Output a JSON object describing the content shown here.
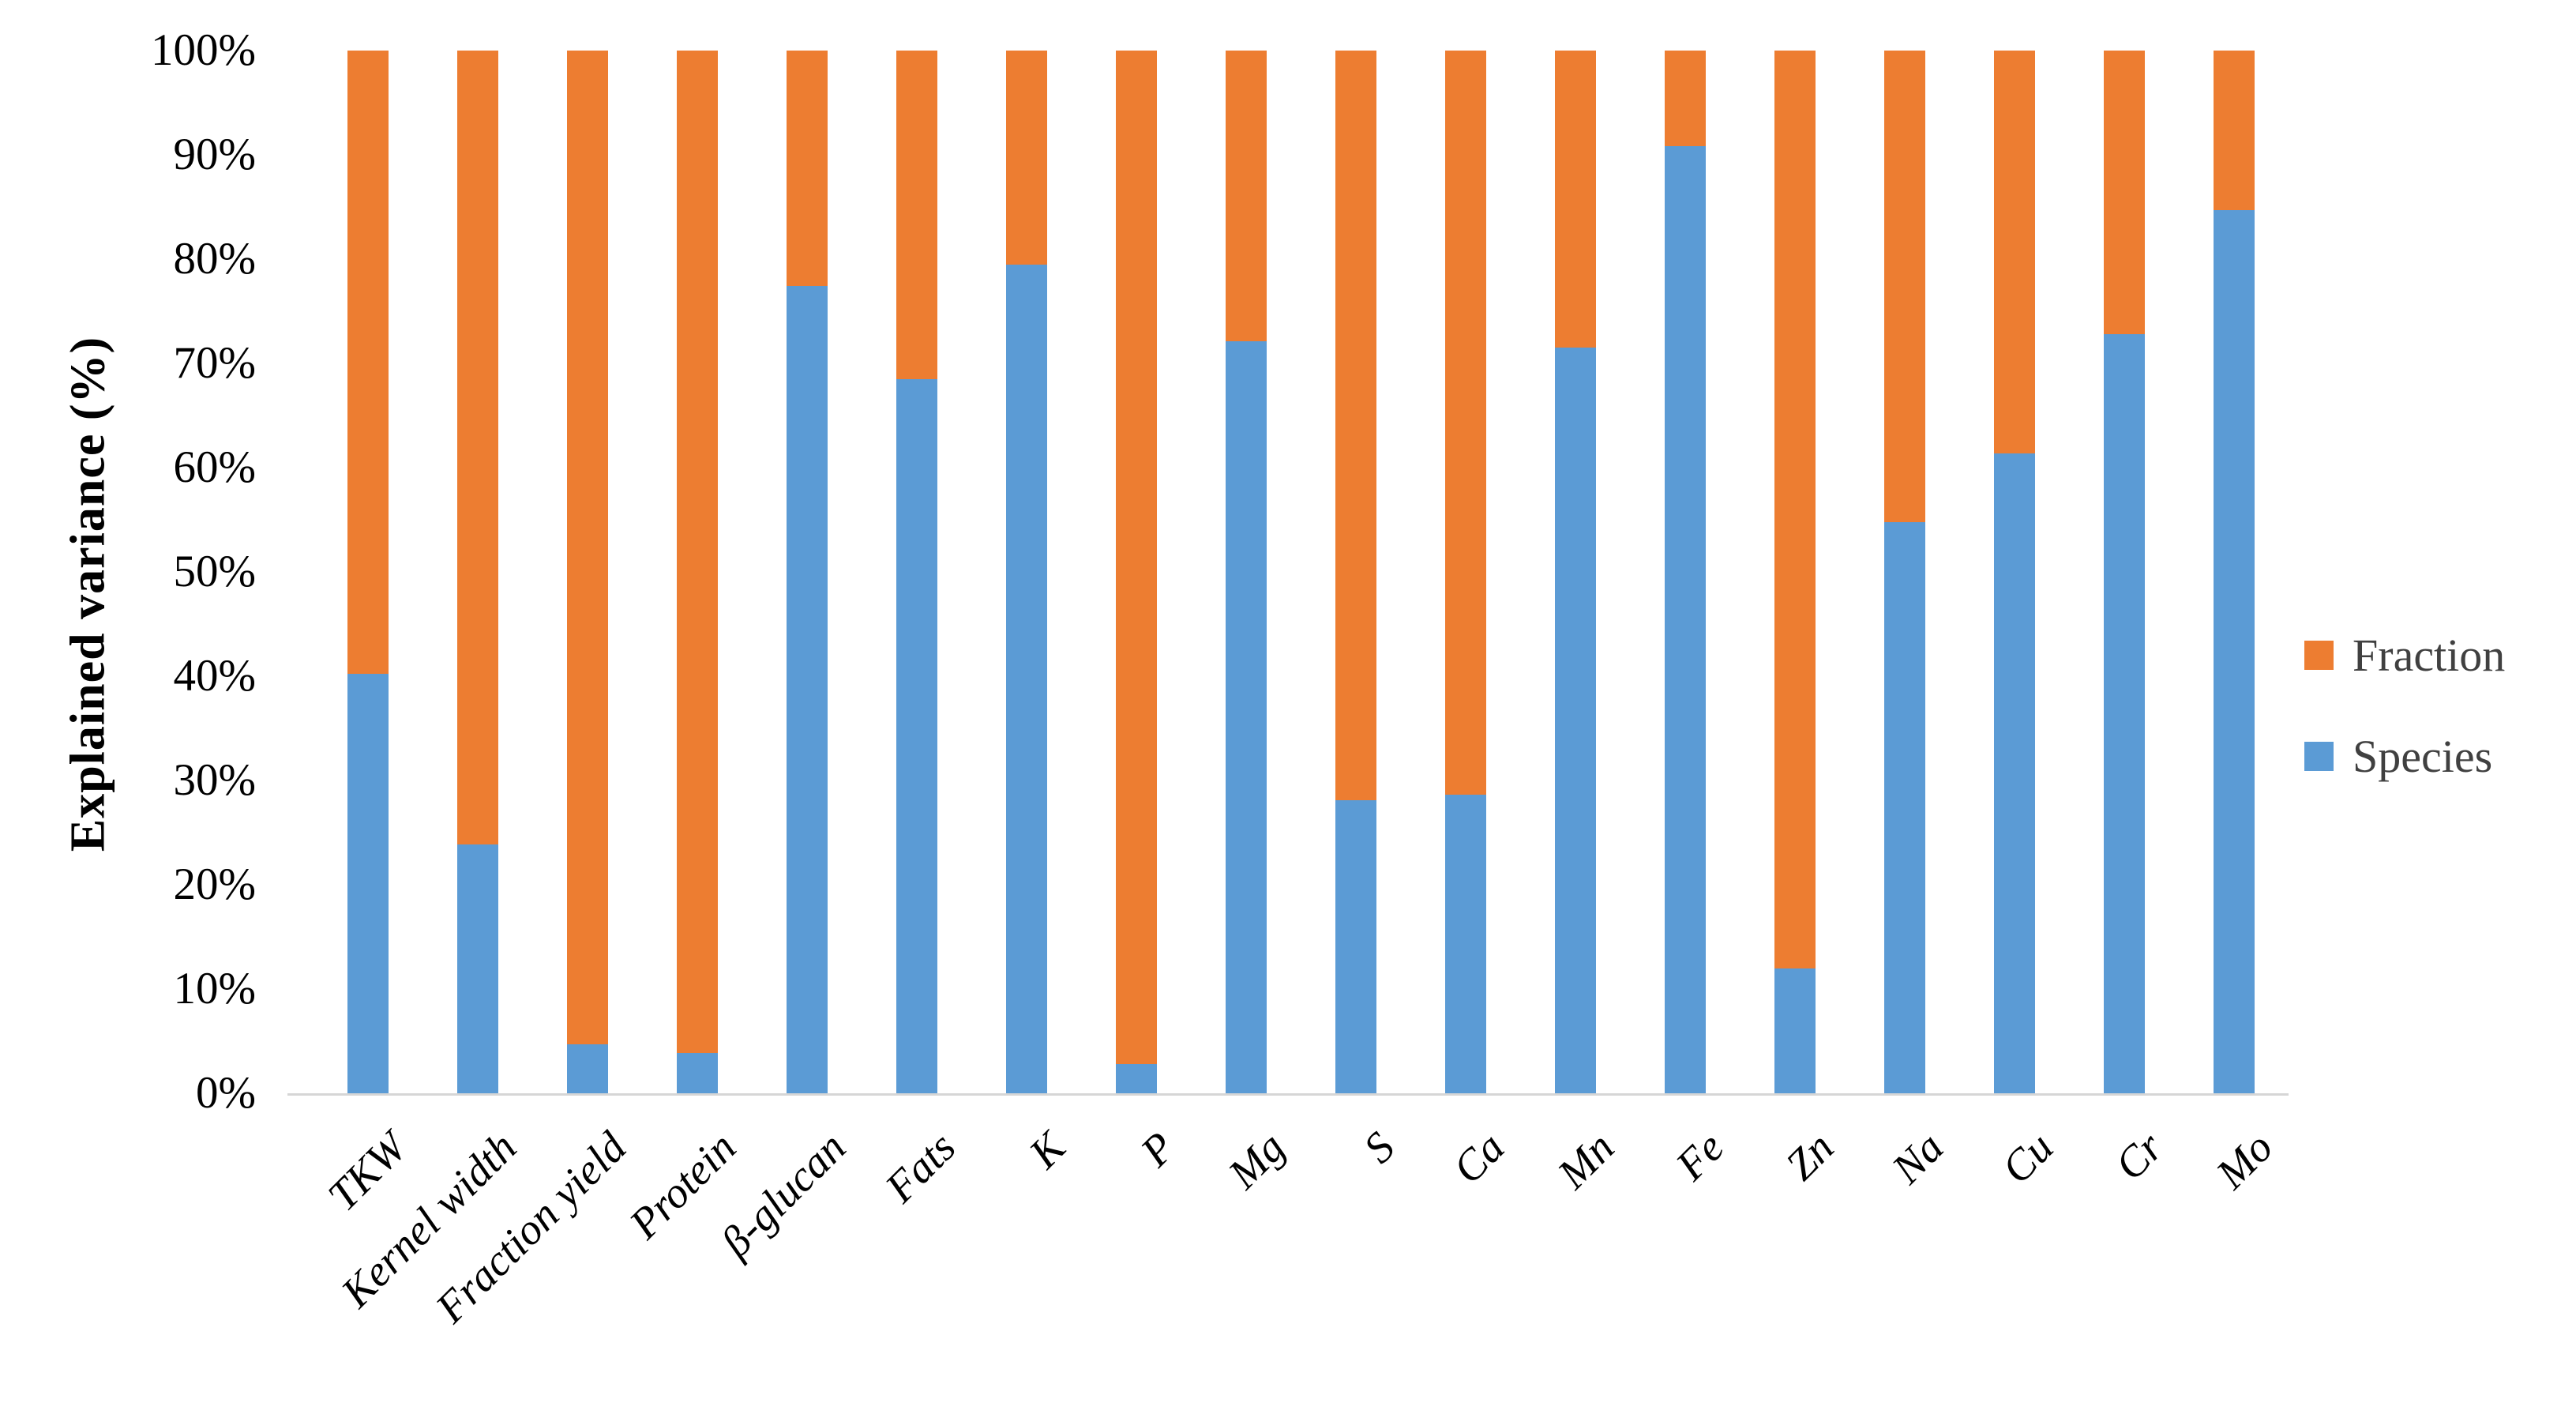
{
  "chart_data": {
    "type": "bar",
    "stacked": true,
    "percent_stacked": true,
    "title": "",
    "xlabel": "",
    "ylabel": "Explained variance (%)",
    "ylim": [
      0,
      100
    ],
    "grid": false,
    "y_tick_labels": [
      "0%",
      "10%",
      "20%",
      "30%",
      "40%",
      "50%",
      "60%",
      "70%",
      "80%",
      "90%",
      "100%"
    ],
    "categories": [
      "TKW",
      "Kernel width",
      "Fraction yield",
      "Protein",
      "β-glucan",
      "Fats",
      "K",
      "P",
      "Mg",
      "S",
      "Ca",
      "Mn",
      "Fe",
      "Zn",
      "Na",
      "Cu",
      "Cr",
      "Mo"
    ],
    "series": [
      {
        "name": "Species",
        "color": "#5B9BD5",
        "values": [
          40.2,
          23.9,
          4.7,
          3.9,
          77.4,
          68.5,
          79.5,
          2.8,
          72.1,
          28.1,
          28.6,
          71.5,
          90.8,
          12.0,
          54.8,
          61.4,
          72.8,
          84.7
        ]
      },
      {
        "name": "Fraction",
        "color": "#ED7D31",
        "values": [
          59.8,
          76.1,
          95.3,
          96.1,
          22.6,
          31.5,
          20.5,
          97.2,
          27.9,
          71.9,
          71.4,
          28.5,
          9.2,
          88.0,
          45.2,
          38.6,
          27.2,
          15.3
        ]
      }
    ],
    "legend": {
      "position": "right",
      "entries": [
        {
          "label": "Fraction",
          "color": "#ED7D31"
        },
        {
          "label": "Species",
          "color": "#5B9BD5"
        }
      ]
    }
  },
  "colors": {
    "background": "#FFFFFF",
    "baseline": "#D6D6D6",
    "tick_text": "#000000",
    "legend_text": "#404040"
  }
}
